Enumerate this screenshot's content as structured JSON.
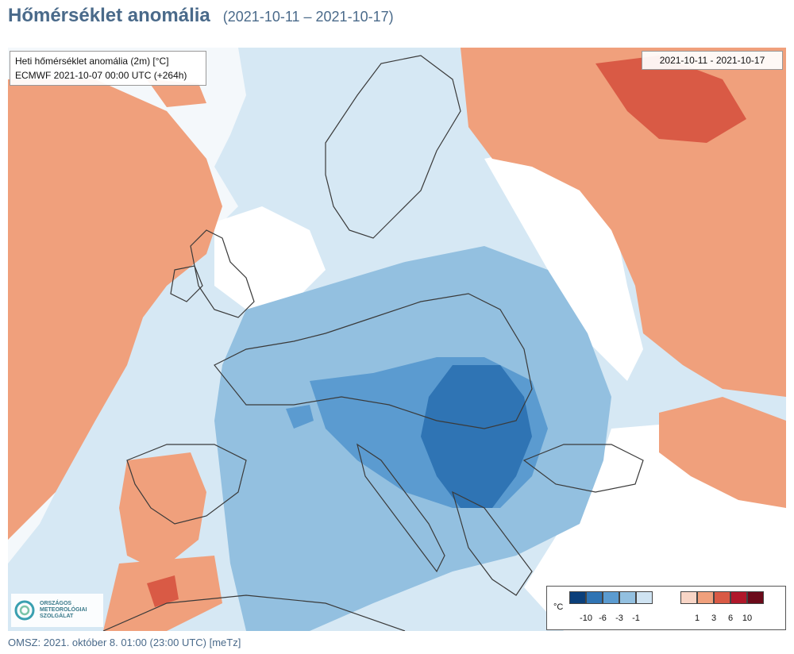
{
  "header": {
    "title": "Hőmérséklet anomália",
    "date_range": "(2021-10-11 – 2021-10-17)"
  },
  "info_box": {
    "line1": "Heti hőmérséklet anomália (2m) [°C]",
    "line2": "ECMWF 2021-10-07 00:00 UTC (+264h)"
  },
  "date_box": "2021-10-11 - 2021-10-17",
  "logo": {
    "line1": "ORSZÁGOS",
    "line2": "METEOROLÓGIAI",
    "line3": "SZOLGÁLAT"
  },
  "legend": {
    "unit": "°C",
    "cold": {
      "colors": [
        "#0b3f7a",
        "#2f74b4",
        "#5b9bd0",
        "#93c0e0",
        "#cfe3f2"
      ],
      "ticks": [
        "-10",
        "-6",
        "-3",
        "-1"
      ]
    },
    "warm": {
      "colors": [
        "#f8d5c6",
        "#f0a07c",
        "#d95a45",
        "#b0182a",
        "#6b0a1a"
      ],
      "ticks": [
        "1",
        "3",
        "6",
        "10"
      ]
    }
  },
  "footer": "OMSZ: 2021. október 8. 01:00 (23:00 UTC)  [meTz]"
}
